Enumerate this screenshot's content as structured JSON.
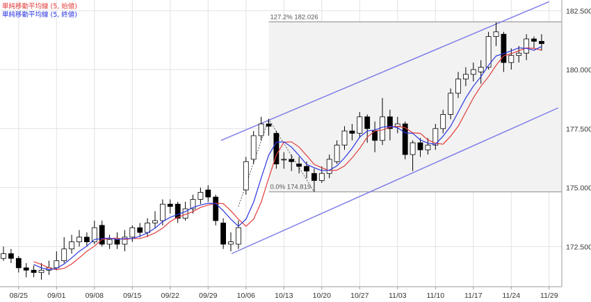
{
  "chart_data": {
    "type": "candlestick",
    "categories": [
      null,
      null,
      "08/25",
      null,
      null,
      null,
      null,
      "09/01",
      null,
      null,
      null,
      null,
      "09/08",
      null,
      null,
      null,
      null,
      "09/15",
      null,
      null,
      null,
      null,
      "09/22",
      null,
      null,
      null,
      null,
      "09/29",
      null,
      null,
      null,
      null,
      "10/06",
      null,
      null,
      null,
      null,
      "10/13",
      null,
      null,
      null,
      null,
      "10/20",
      null,
      null,
      null,
      null,
      "10/27",
      null,
      null,
      null,
      null,
      "11/03",
      null,
      null,
      null,
      null,
      "11/10",
      null,
      null,
      null,
      null,
      "11/17",
      null,
      null,
      null,
      null,
      "11/24",
      null,
      null,
      null,
      null,
      "11/29"
    ],
    "open": [
      172.0,
      172.2,
      172.0,
      171.6,
      171.5,
      171.4,
      171.5,
      171.6,
      171.9,
      172.4,
      172.7,
      172.9,
      172.7,
      173.4,
      172.6,
      172.8,
      172.6,
      172.9,
      173.3,
      173.1,
      173.5,
      173.6,
      174.3,
      174.3,
      173.7,
      174.1,
      174.5,
      174.9,
      174.6,
      173.5,
      172.6,
      172.6,
      174.9,
      176.2,
      177.2,
      177.7,
      177.3,
      176.2,
      176.2,
      176.0,
      175.9,
      175.6,
      175.3,
      175.6,
      176.1,
      176.8,
      177.4,
      177.3,
      178.0,
      177.4,
      177.0,
      178.0,
      177.6,
      177.7,
      176.4,
      176.9,
      176.6,
      176.8,
      177.5,
      178.1,
      179.0,
      179.6,
      179.8,
      179.9,
      180.1,
      181.4,
      181.5,
      180.3,
      180.6,
      180.7,
      181.3,
      181.2,
      null
    ],
    "high": [
      172.5,
      172.4,
      172.1,
      171.8,
      171.7,
      171.8,
      171.9,
      172.3,
      172.9,
      173.0,
      173.2,
      173.1,
      173.6,
      173.6,
      173.0,
      173.1,
      173.2,
      173.4,
      173.5,
      173.7,
      174.0,
      174.5,
      174.5,
      174.4,
      174.4,
      174.7,
      175.0,
      175.1,
      174.7,
      173.7,
      173.1,
      173.6,
      176.3,
      177.4,
      178.0,
      177.9,
      177.4,
      176.5,
      176.4,
      176.3,
      176.1,
      175.8,
      175.9,
      176.4,
      177.0,
      177.6,
      177.7,
      178.2,
      178.1,
      177.8,
      178.8,
      178.3,
      178.0,
      177.8,
      177.0,
      177.1,
      177.1,
      177.7,
      178.3,
      179.2,
      179.9,
      180.1,
      180.3,
      180.4,
      181.6,
      182.0,
      181.6,
      180.9,
      181.0,
      181.5,
      181.4,
      181.5,
      null
    ],
    "low": [
      171.9,
      171.8,
      171.4,
      171.2,
      171.2,
      171.1,
      171.3,
      171.5,
      171.8,
      172.2,
      172.5,
      172.5,
      172.6,
      172.5,
      172.4,
      172.4,
      172.3,
      172.7,
      172.9,
      172.9,
      173.3,
      173.4,
      173.9,
      173.5,
      173.6,
      173.9,
      174.3,
      174.4,
      173.4,
      172.4,
      172.3,
      172.4,
      174.7,
      176.0,
      177.0,
      177.2,
      175.8,
      175.8,
      175.7,
      175.6,
      175.4,
      174.82,
      175.2,
      175.4,
      176.0,
      176.6,
      177.0,
      177.1,
      176.9,
      176.5,
      176.8,
      177.0,
      177.3,
      176.2,
      175.7,
      176.3,
      176.4,
      176.6,
      177.3,
      177.9,
      178.8,
      179.3,
      179.5,
      179.4,
      180.0,
      181.0,
      179.9,
      180.0,
      180.3,
      180.4,
      180.9,
      180.8,
      null
    ],
    "close": [
      172.2,
      172.0,
      171.6,
      171.5,
      171.4,
      171.5,
      171.6,
      171.9,
      172.4,
      172.7,
      172.9,
      172.7,
      173.3,
      172.6,
      172.8,
      172.6,
      172.9,
      173.3,
      173.1,
      173.5,
      173.6,
      174.3,
      174.2,
      173.7,
      174.1,
      174.5,
      174.8,
      174.6,
      173.6,
      172.6,
      172.7,
      173.3,
      176.1,
      177.2,
      177.7,
      177.6,
      176.0,
      176.2,
      176.1,
      175.9,
      175.7,
      175.3,
      175.6,
      176.2,
      176.8,
      177.4,
      177.3,
      178.0,
      177.5,
      177.0,
      178.0,
      177.5,
      177.7,
      176.4,
      176.9,
      176.6,
      176.8,
      177.5,
      178.1,
      179.0,
      179.6,
      179.8,
      180.0,
      180.1,
      181.4,
      181.6,
      180.3,
      180.6,
      180.7,
      181.3,
      181.2,
      181.1,
      null
    ],
    "series": [
      {
        "name": "単純移動平均線 (5, 始値)",
        "color": "#e23b3b",
        "values": [
          null,
          null,
          null,
          null,
          171.86,
          171.74,
          171.6,
          171.52,
          171.58,
          171.76,
          172.02,
          172.3,
          172.52,
          172.8,
          172.84,
          172.86,
          172.8,
          172.84,
          172.84,
          172.94,
          173.08,
          173.28,
          173.56,
          173.74,
          173.86,
          173.98,
          174.16,
          174.26,
          174.34,
          174.32,
          174.02,
          173.66,
          173.36,
          173.66,
          174.38,
          175.4,
          176.38,
          176.92,
          176.94,
          176.72,
          176.36,
          175.98,
          175.84,
          175.72,
          175.74,
          175.92,
          176.26,
          176.66,
          177.14,
          177.4,
          177.44,
          177.56,
          177.6,
          177.54,
          177.32,
          177.3,
          177.02,
          176.88,
          176.84,
          177.18,
          177.6,
          178.2,
          178.8,
          179.3,
          179.7,
          180.18,
          180.58,
          180.68,
          180.8,
          180.92,
          180.9,
          180.82,
          null
        ]
      },
      {
        "name": "単純移動平均線 (5, 終値)",
        "color": "#2a35e0",
        "values": [
          null,
          null,
          null,
          null,
          171.74,
          171.6,
          171.52,
          171.58,
          171.76,
          172.02,
          172.3,
          172.52,
          172.8,
          172.84,
          172.86,
          172.8,
          172.84,
          172.84,
          172.94,
          173.08,
          173.28,
          173.56,
          173.74,
          173.86,
          173.98,
          174.16,
          174.26,
          174.34,
          174.32,
          174.02,
          173.66,
          173.36,
          173.66,
          174.38,
          175.4,
          176.38,
          176.92,
          176.94,
          176.72,
          176.36,
          175.98,
          175.84,
          175.72,
          175.74,
          175.92,
          176.26,
          176.66,
          177.14,
          177.4,
          177.44,
          177.56,
          177.6,
          177.54,
          177.32,
          177.3,
          177.02,
          176.88,
          176.84,
          177.18,
          177.6,
          178.2,
          178.8,
          179.3,
          179.7,
          180.18,
          180.58,
          180.68,
          180.8,
          180.92,
          180.9,
          180.82,
          180.98,
          null
        ]
      }
    ],
    "trend_lines": [
      {
        "color": "#7f7fe8",
        "x": [
          28.7,
          72.0
        ],
        "y": [
          177.0,
          182.88
        ]
      },
      {
        "color": "#7f7fe8",
        "x": [
          30.1,
          73.2
        ],
        "y": [
          172.2,
          178.38
        ]
      }
    ],
    "fibonacci": {
      "start": 35,
      "anchor_x": [
        31,
        35,
        41
      ],
      "anchor_y": [
        174.2,
        177.9,
        174.82
      ],
      "levels": [
        {
          "value": 182.026,
          "label": "127.2% 182.026"
        },
        {
          "value": 174.819,
          "label": "0.0% 174.819"
        }
      ]
    },
    "ylim": [
      170.8,
      182.95
    ],
    "yticks": [
      {
        "value": 172.5,
        "label": "172.500"
      },
      {
        "value": 175,
        "label": "175.000"
      },
      {
        "value": 177.5,
        "label": "177.500"
      },
      {
        "value": 180,
        "label": "180.000"
      },
      {
        "value": 182.5,
        "label": "182.500"
      }
    ],
    "grid": true,
    "legend": "top-left"
  }
}
